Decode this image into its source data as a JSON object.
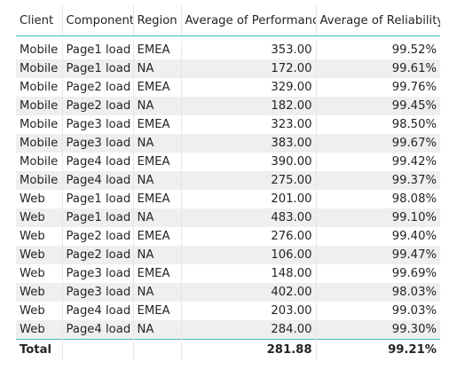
{
  "columns": {
    "client": "Client",
    "component": "Component",
    "region": "Region",
    "performance": "Average of Performance",
    "reliability": "Average of Reliability"
  },
  "rows": [
    {
      "client": "Mobile",
      "component": "Page1 load",
      "region": "EMEA",
      "performance": "353.00",
      "reliability": "99.52%"
    },
    {
      "client": "Mobile",
      "component": "Page1 load",
      "region": "NA",
      "performance": "172.00",
      "reliability": "99.61%"
    },
    {
      "client": "Mobile",
      "component": "Page2 load",
      "region": "EMEA",
      "performance": "329.00",
      "reliability": "99.76%"
    },
    {
      "client": "Mobile",
      "component": "Page2 load",
      "region": "NA",
      "performance": "182.00",
      "reliability": "99.45%"
    },
    {
      "client": "Mobile",
      "component": "Page3 load",
      "region": "EMEA",
      "performance": "323.00",
      "reliability": "98.50%"
    },
    {
      "client": "Mobile",
      "component": "Page3 load",
      "region": "NA",
      "performance": "383.00",
      "reliability": "99.67%"
    },
    {
      "client": "Mobile",
      "component": "Page4 load",
      "region": "EMEA",
      "performance": "390.00",
      "reliability": "99.42%"
    },
    {
      "client": "Mobile",
      "component": "Page4 load",
      "region": "NA",
      "performance": "275.00",
      "reliability": "99.37%"
    },
    {
      "client": "Web",
      "component": "Page1 load",
      "region": "EMEA",
      "performance": "201.00",
      "reliability": "98.08%"
    },
    {
      "client": "Web",
      "component": "Page1 load",
      "region": "NA",
      "performance": "483.00",
      "reliability": "99.10%"
    },
    {
      "client": "Web",
      "component": "Page2 load",
      "region": "EMEA",
      "performance": "276.00",
      "reliability": "99.40%"
    },
    {
      "client": "Web",
      "component": "Page2 load",
      "region": "NA",
      "performance": "106.00",
      "reliability": "99.47%"
    },
    {
      "client": "Web",
      "component": "Page3 load",
      "region": "EMEA",
      "performance": "148.00",
      "reliability": "99.69%"
    },
    {
      "client": "Web",
      "component": "Page3 load",
      "region": "NA",
      "performance": "402.00",
      "reliability": "98.03%"
    },
    {
      "client": "Web",
      "component": "Page4 load",
      "region": "EMEA",
      "performance": "203.00",
      "reliability": "99.03%"
    },
    {
      "client": "Web",
      "component": "Page4 load",
      "region": "NA",
      "performance": "284.00",
      "reliability": "99.30%"
    }
  ],
  "total": {
    "label": "Total",
    "performance": "281.88",
    "reliability": "99.21%"
  },
  "colors": {
    "header_rule": "#3fbdb5",
    "row_stripe": "#efefef"
  }
}
